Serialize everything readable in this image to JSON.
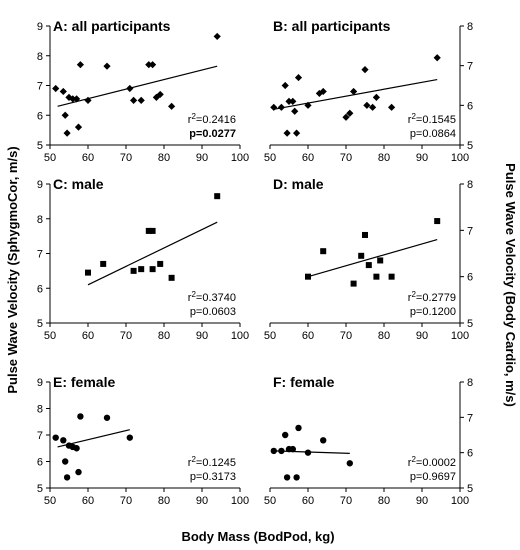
{
  "axis_labels": {
    "x": "Body Mass (BodPod, kg)",
    "y_left": "Pulse Wave Velocity (SphygmoCor, m/s)",
    "y_right": "Pulse Wave Velocity (Body Cardio, m/s)"
  },
  "chart_data": [
    {
      "type": "scatter",
      "title": "A: all participants",
      "marker": "diamond",
      "xlim": [
        50,
        100
      ],
      "ylim": [
        5,
        9
      ],
      "xticks": [
        50,
        60,
        70,
        80,
        90,
        100
      ],
      "yticks": [
        5,
        6,
        7,
        8,
        9
      ],
      "points": [
        [
          51.5,
          6.9
        ],
        [
          53.5,
          6.8
        ],
        [
          54.5,
          5.4
        ],
        [
          55,
          6.6
        ],
        [
          54,
          6.0
        ],
        [
          56,
          6.55
        ],
        [
          57,
          6.55
        ],
        [
          57.5,
          5.6
        ],
        [
          58,
          7.7
        ],
        [
          60,
          6.5
        ],
        [
          65,
          7.65
        ],
        [
          71,
          6.9
        ],
        [
          72,
          6.5
        ],
        [
          74,
          6.5
        ],
        [
          76,
          7.7
        ],
        [
          77,
          7.7
        ],
        [
          78,
          6.6
        ],
        [
          79,
          6.7
        ],
        [
          82,
          6.3
        ],
        [
          94,
          8.65
        ]
      ],
      "fit": [
        [
          52,
          6.3
        ],
        [
          94,
          7.65
        ]
      ],
      "r2_label": "r",
      "r2_sup": "2",
      "r2_value": "=0.2416",
      "p_value": "p=0.0277",
      "p_bold": true
    },
    {
      "type": "scatter",
      "title": "B: all participants",
      "marker": "diamond",
      "xlim": [
        50,
        100
      ],
      "ylim": [
        5,
        8
      ],
      "xticks": [
        50,
        60,
        70,
        80,
        90,
        100
      ],
      "yticks": [
        5,
        6,
        7,
        8
      ],
      "points": [
        [
          51,
          5.95
        ],
        [
          53,
          5.95
        ],
        [
          54,
          6.5
        ],
        [
          54.5,
          5.3
        ],
        [
          55,
          6.1
        ],
        [
          56,
          6.1
        ],
        [
          56.5,
          5.85
        ],
        [
          57,
          5.3
        ],
        [
          57.5,
          6.7
        ],
        [
          60,
          6.0
        ],
        [
          63,
          6.3
        ],
        [
          64,
          6.35
        ],
        [
          70,
          5.7
        ],
        [
          71,
          5.8
        ],
        [
          72,
          6.35
        ],
        [
          75,
          6.9
        ],
        [
          75.5,
          6.0
        ],
        [
          77,
          5.95
        ],
        [
          78,
          6.2
        ],
        [
          82,
          5.95
        ],
        [
          94,
          7.2
        ]
      ],
      "fit": [
        [
          51,
          5.9
        ],
        [
          94,
          6.65
        ]
      ],
      "r2_label": "r",
      "r2_sup": "2",
      "r2_value": "=0.1545",
      "p_value": "p=0.0864",
      "p_bold": false
    },
    {
      "type": "scatter",
      "title": "C: male",
      "marker": "square",
      "xlim": [
        50,
        100
      ],
      "ylim": [
        5,
        9
      ],
      "xticks": [
        50,
        60,
        70,
        80,
        90,
        100
      ],
      "yticks": [
        5,
        6,
        7,
        8,
        9
      ],
      "points": [
        [
          60,
          6.45
        ],
        [
          64,
          6.7
        ],
        [
          72,
          6.5
        ],
        [
          74,
          6.55
        ],
        [
          76,
          7.65
        ],
        [
          77,
          7.65
        ],
        [
          77,
          6.55
        ],
        [
          79,
          6.7
        ],
        [
          82,
          6.3
        ],
        [
          94,
          8.65
        ]
      ],
      "fit": [
        [
          60,
          6.1
        ],
        [
          94,
          7.9
        ]
      ],
      "r2_label": "r",
      "r2_sup": "2",
      "r2_value": "=0.3740",
      "p_value": "p=0.0603",
      "p_bold": false
    },
    {
      "type": "scatter",
      "title": "D: male",
      "marker": "square",
      "xlim": [
        50,
        100
      ],
      "ylim": [
        5,
        8
      ],
      "xticks": [
        50,
        60,
        70,
        80,
        90,
        100
      ],
      "yticks": [
        5,
        6,
        7,
        8
      ],
      "points": [
        [
          60,
          6.0
        ],
        [
          64,
          6.55
        ],
        [
          72,
          5.85
        ],
        [
          74,
          6.45
        ],
        [
          75,
          6.9
        ],
        [
          76,
          6.25
        ],
        [
          78,
          6.0
        ],
        [
          79,
          6.35
        ],
        [
          82,
          6.0
        ],
        [
          94,
          7.2
        ]
      ],
      "fit": [
        [
          60,
          6.0
        ],
        [
          94,
          6.8
        ]
      ],
      "r2_label": "r",
      "r2_sup": "2",
      "r2_value": "=0.2779",
      "p_value": "p=0.1200",
      "p_bold": false
    },
    {
      "type": "scatter",
      "title": "E: female",
      "marker": "circle",
      "xlim": [
        50,
        100
      ],
      "ylim": [
        5,
        9
      ],
      "xticks": [
        50,
        60,
        70,
        80,
        90,
        100
      ],
      "yticks": [
        5,
        6,
        7,
        8,
        9
      ],
      "points": [
        [
          51.5,
          6.9
        ],
        [
          53.5,
          6.8
        ],
        [
          54,
          6.0
        ],
        [
          54.5,
          5.4
        ],
        [
          55,
          6.6
        ],
        [
          56,
          6.55
        ],
        [
          57,
          6.5
        ],
        [
          57.5,
          5.6
        ],
        [
          58,
          7.7
        ],
        [
          65,
          7.65
        ],
        [
          71,
          6.9
        ]
      ],
      "fit": [
        [
          52,
          6.55
        ],
        [
          71,
          7.2
        ]
      ],
      "r2_label": "r",
      "r2_sup": "2",
      "r2_value": "=0.1245",
      "p_value": "p=0.3173",
      "p_bold": false
    },
    {
      "type": "scatter",
      "title": "F: female",
      "marker": "circle",
      "xlim": [
        50,
        100
      ],
      "ylim": [
        5,
        8
      ],
      "xticks": [
        50,
        60,
        70,
        80,
        90,
        100
      ],
      "yticks": [
        5,
        6,
        7,
        8
      ],
      "points": [
        [
          51,
          6.05
        ],
        [
          53,
          6.05
        ],
        [
          54,
          6.5
        ],
        [
          54.5,
          5.3
        ],
        [
          55,
          6.1
        ],
        [
          56,
          6.1
        ],
        [
          57,
          5.3
        ],
        [
          57.5,
          6.7
        ],
        [
          60,
          6.0
        ],
        [
          64,
          6.35
        ],
        [
          71,
          5.7
        ]
      ],
      "fit": [
        [
          51,
          6.05
        ],
        [
          71,
          5.98
        ]
      ],
      "r2_label": "r",
      "r2_sup": "2",
      "r2_value": "=0.0002",
      "p_value": "p=0.9697",
      "p_bold": false
    }
  ]
}
